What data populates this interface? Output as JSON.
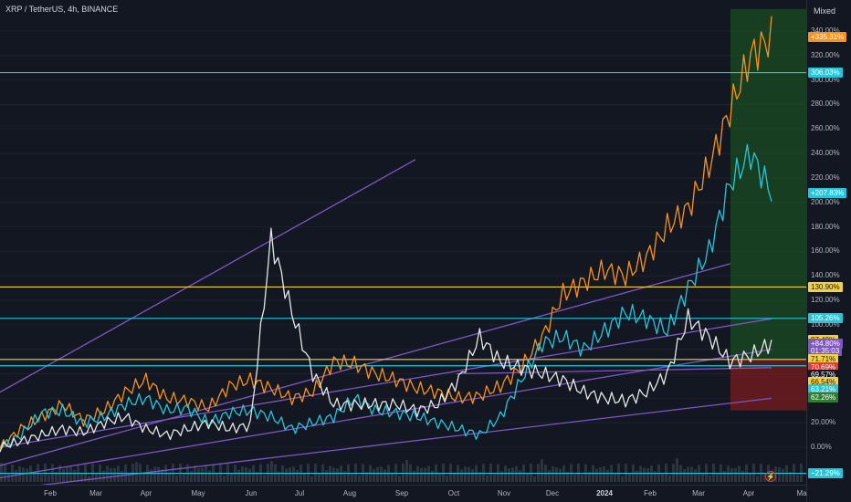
{
  "header": {
    "symbol_title": "XRP / TetherUS, 4h, BINANCE",
    "scale_mode": "Mixed"
  },
  "colors": {
    "background": "#131722",
    "grid": "#1e222d",
    "orange": "#f7931a",
    "cyan": "#26c6da",
    "white": "#e6e6e6",
    "purple": "#7e57c2",
    "yellow": "#f5d142",
    "green_zone": "#1b5e20",
    "red_zone": "#7f1d1d",
    "volume": "#2e3340"
  },
  "icons": {
    "flash": "lightning-bolt-icon"
  },
  "chart_data": {
    "type": "line",
    "x_axis_labels": [
      "Feb",
      "Mar",
      "Apr",
      "May",
      "Jun",
      "Jul",
      "Aug",
      "Sep",
      "Oct",
      "Nov",
      "Dec",
      "2024",
      "Feb",
      "Mar",
      "Apr",
      "Ma"
    ],
    "y_axis_labels": [
      "340.00%",
      "320.00%",
      "300.00%",
      "280.00%",
      "260.00%",
      "240.00%",
      "220.00%",
      "200.00%",
      "180.00%",
      "160.00%",
      "140.00%",
      "120.00%",
      "100.00%",
      "80.00%",
      "60.00%",
      "40.00%",
      "20.00%",
      "0.00%"
    ],
    "y_scale": "percent",
    "series": [
      {
        "key": "orange",
        "values": [
          0,
          15,
          25,
          35,
          22,
          30,
          45,
          55,
          40,
          38,
          32,
          50,
          55,
          48,
          40,
          45,
          70,
          68,
          60,
          55,
          48,
          45,
          40,
          42,
          50,
          65,
          90,
          125,
          135,
          145,
          140,
          155,
          180,
          195,
          230,
          275,
          320,
          335
        ]
      },
      {
        "key": "cyan",
        "values": [
          0,
          10,
          28,
          30,
          20,
          25,
          35,
          40,
          30,
          32,
          20,
          28,
          30,
          25,
          15,
          20,
          25,
          40,
          30,
          28,
          25,
          20,
          15,
          10,
          25,
          55,
          85,
          90,
          80,
          95,
          110,
          105,
          95,
          130,
          160,
          215,
          240,
          208
        ]
      },
      {
        "key": "white",
        "values": [
          0,
          5,
          10,
          15,
          12,
          20,
          25,
          15,
          10,
          15,
          20,
          15,
          18,
          170,
          110,
          60,
          35,
          35,
          35,
          35,
          30,
          35,
          55,
          90,
          70,
          65,
          60,
          55,
          45,
          40,
          38,
          45,
          60,
          105,
          90,
          70,
          75,
          85
        ]
      }
    ],
    "markers": [
      {
        "label": "+335.31%",
        "value": 335.31,
        "color": "#f7931a"
      },
      {
        "label": "306.03%",
        "value": 306.03,
        "color": "#26c6da"
      },
      {
        "label": "+207.83%",
        "value": 207.83,
        "color": "#26c6da"
      },
      {
        "label": "130.90%",
        "value": 130.9,
        "color": "#f5d142",
        "text_color": "#131722"
      },
      {
        "label": "105.26%",
        "value": 105.26,
        "color": "#26c6da"
      },
      {
        "label": "87.49%",
        "value": 87.49,
        "color": "#f5d142",
        "text_color": "#131722"
      },
      {
        "label": "+84.80%",
        "value": 84.8,
        "color": "#7e57c2"
      },
      {
        "label": "01:35:03",
        "value": 78.5,
        "color": "#7e57c2"
      },
      {
        "label": "71.71%",
        "value": 71.71,
        "color": "#f5d142",
        "text_color": "#131722"
      },
      {
        "label": "70.69%",
        "value": 65.5,
        "color": "#e53935"
      },
      {
        "label": "69.57%",
        "value": 59.5,
        "color": "#131722"
      },
      {
        "label": "66.54%",
        "value": 53.3,
        "color": "#f5d142",
        "text_color": "#131722"
      },
      {
        "label": "63.21%",
        "value": 47.0,
        "color": "#26c6da"
      },
      {
        "label": "62.26%",
        "value": 40.8,
        "color": "#2e7d32"
      },
      {
        "label": "−21.29%",
        "value": -21.29,
        "color": "#26c6da"
      }
    ],
    "horizontal_lines": [
      {
        "value": 306.03,
        "color": "#26c6da"
      },
      {
        "value": 130.9,
        "color": "#f5d142"
      },
      {
        "value": 105.26,
        "color": "#26c6da"
      },
      {
        "value": 71.71,
        "color": "#f5d142"
      },
      {
        "value": 66.54,
        "color": "#26c6da"
      },
      {
        "value": -21.29,
        "color": "#26c6da"
      }
    ]
  }
}
